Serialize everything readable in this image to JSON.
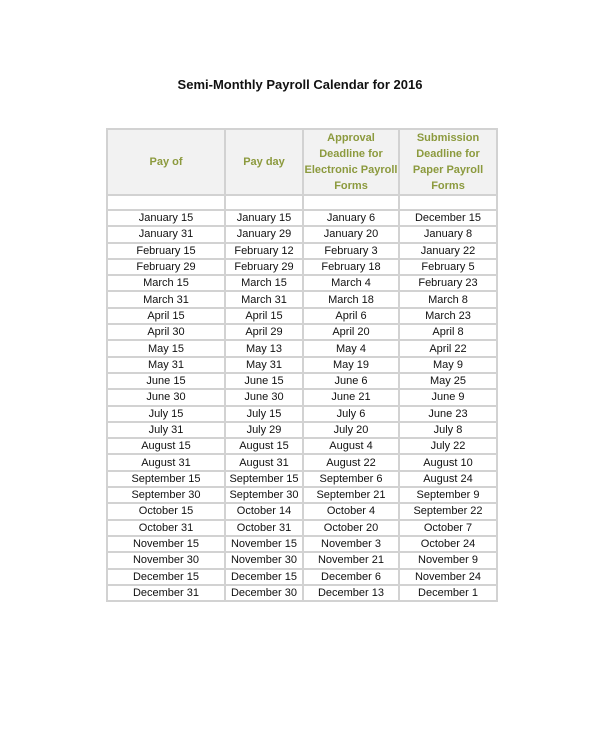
{
  "title": "Semi-Monthly Payroll Calendar for 2016",
  "colors": {
    "header_text": "#8c9a3e",
    "header_bg": "#f2f2f2",
    "border": "#d2d2d2"
  },
  "table": {
    "headers": [
      "Pay of",
      "Pay day",
      "Approval Deadline for Electronic Payroll Forms",
      "Submission Deadline for Paper Payroll Forms"
    ],
    "rows": [
      [
        "January 15",
        "January 15",
        "January 6",
        "December 15"
      ],
      [
        "January 31",
        "January 29",
        "January 20",
        "January 8"
      ],
      [
        "February 15",
        "February 12",
        "February 3",
        "January 22"
      ],
      [
        "February 29",
        "February 29",
        "February 18",
        "February 5"
      ],
      [
        "March 15",
        "March 15",
        "March 4",
        "February 23"
      ],
      [
        "March 31",
        "March 31",
        "March 18",
        "March 8"
      ],
      [
        "April 15",
        "April 15",
        "April 6",
        "March 23"
      ],
      [
        "April 30",
        "April 29",
        "April 20",
        "April 8"
      ],
      [
        "May 15",
        "May 13",
        "May 4",
        "April 22"
      ],
      [
        "May 31",
        "May 31",
        "May 19",
        "May 9"
      ],
      [
        "June 15",
        "June 15",
        "June 6",
        "May 25"
      ],
      [
        "June 30",
        "June 30",
        "June 21",
        "June 9"
      ],
      [
        "July 15",
        "July 15",
        "July 6",
        "June 23"
      ],
      [
        "July 31",
        "July 29",
        "July 20",
        "July 8"
      ],
      [
        "August 15",
        "August 15",
        "August 4",
        "July 22"
      ],
      [
        "August 31",
        "August 31",
        "August 22",
        "August 10"
      ],
      [
        "September 15",
        "September 15",
        "September 6",
        "August 24"
      ],
      [
        "September 30",
        "September 30",
        "September 21",
        "September 9"
      ],
      [
        "October 15",
        "October 14",
        "October 4",
        "September 22"
      ],
      [
        "October 31",
        "October 31",
        "October 20",
        "October 7"
      ],
      [
        "November 15",
        "November 15",
        "November 3",
        "October 24"
      ],
      [
        "November 30",
        "November 30",
        "November 21",
        "November 9"
      ],
      [
        "December 15",
        "December 15",
        "December 6",
        "November 24"
      ],
      [
        "December 31",
        "December 30",
        "December 13",
        "December 1"
      ]
    ]
  }
}
